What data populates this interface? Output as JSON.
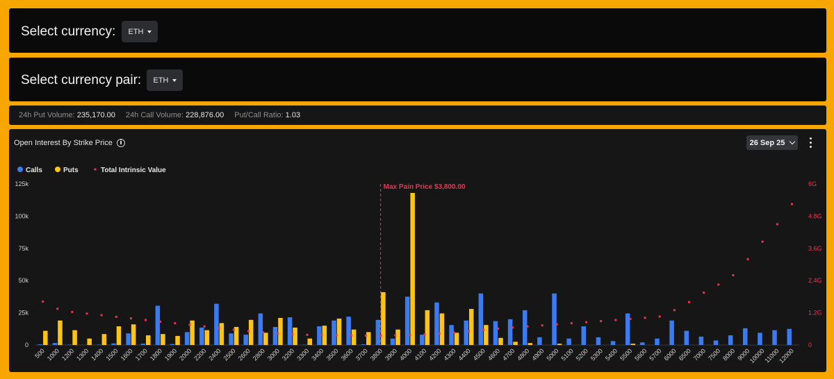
{
  "currency_select": {
    "label": "Select currency:",
    "value": "ETH"
  },
  "pair_select": {
    "label": "Select currency pair:",
    "value": "ETH"
  },
  "stats": {
    "put_volume_label": "24h Put Volume:",
    "put_volume": "235,170.00",
    "call_volume_label": "24h Call Volume:",
    "call_volume": "228,876.00",
    "ratio_label": "Put/Call Ratio:",
    "ratio": "1.03"
  },
  "chart_panel": {
    "title": "Open Interest By Strike Price",
    "expiry": "26 Sep 25"
  },
  "colors": {
    "calls": "#3a7bf2",
    "puts": "#fcc419",
    "intrinsic": "#e8364f",
    "page_border": "#f7a600"
  },
  "chart_data": {
    "type": "bar",
    "legend": [
      "Calls",
      "Puts",
      "Total Intrinsic Value"
    ],
    "legend_position": "top-left",
    "grid": false,
    "categories": [
      "500",
      "1000",
      "1200",
      "1300",
      "1400",
      "1500",
      "1600",
      "1700",
      "1800",
      "1900",
      "2000",
      "2200",
      "2400",
      "2500",
      "2600",
      "2800",
      "3000",
      "3200",
      "3300",
      "3400",
      "3500",
      "3600",
      "3700",
      "3800",
      "3900",
      "4000",
      "4100",
      "4200",
      "4300",
      "4400",
      "4500",
      "4600",
      "4700",
      "4800",
      "4900",
      "5000",
      "5100",
      "5200",
      "5300",
      "5400",
      "5500",
      "5600",
      "5700",
      "6000",
      "6500",
      "7000",
      "7500",
      "8000",
      "9000",
      "10000",
      "11000",
      "12000"
    ],
    "series": [
      {
        "name": "Calls",
        "axis": "left",
        "values": [
          500,
          1500,
          300,
          0,
          200,
          1200,
          9000,
          1000,
          30500,
          700,
          10000,
          13500,
          32000,
          9000,
          8000,
          24500,
          14000,
          21500,
          200,
          14500,
          19000,
          22000,
          500,
          19500,
          5000,
          37500,
          8000,
          33000,
          15500,
          19000,
          40000,
          18500,
          20000,
          27000,
          6000,
          40000,
          5000,
          14500,
          6000,
          3000,
          24500,
          2000,
          5000,
          19000,
          11000,
          6500,
          3500,
          7500,
          13000,
          9500,
          11500,
          12500
        ]
      },
      {
        "name": "Puts",
        "axis": "left",
        "values": [
          11000,
          19000,
          11500,
          5000,
          8500,
          14500,
          16000,
          7500,
          8500,
          7000,
          19000,
          11500,
          17000,
          14000,
          19500,
          9500,
          21000,
          13500,
          5000,
          15000,
          20500,
          12000,
          10000,
          41000,
          12000,
          118000,
          27000,
          24500,
          9500,
          28000,
          15500,
          5500,
          2500,
          1500,
          0,
          1000,
          0,
          0,
          0,
          0,
          1000,
          0,
          0,
          0,
          0,
          0,
          0,
          0,
          0,
          0,
          0,
          0
        ]
      },
      {
        "name": "Total Intrinsic Value",
        "axis": "right",
        "values": [
          1620000000.0,
          1350000000.0,
          1230000000.0,
          1170000000.0,
          1110000000.0,
          1050000000.0,
          990000000.0,
          930000000.0,
          870000000.0,
          810000000.0,
          750000000.0,
          690000000.0,
          630000000.0,
          570000000.0,
          520000000.0,
          470000000.0,
          430000000.0,
          400000000.0,
          380000000.0,
          370000000.0,
          360000000.0,
          360000000.0,
          350000000.0,
          350000000.0,
          360000000.0,
          370000000.0,
          390000000.0,
          420000000.0,
          460000000.0,
          510000000.0,
          570000000.0,
          610000000.0,
          650000000.0,
          690000000.0,
          730000000.0,
          770000000.0,
          810000000.0,
          850000000.0,
          890000000.0,
          930000000.0,
          970000000.0,
          1010000000.0,
          1060000000.0,
          1300000000.0,
          1600000000.0,
          1950000000.0,
          2250000000.0,
          2600000000.0,
          3200000000.0,
          3850000000.0,
          4500000000.0,
          5250000000.0
        ]
      }
    ],
    "y_left": {
      "ylim": [
        0,
        125000
      ],
      "ticks": [
        0,
        25000,
        50000,
        75000,
        100000,
        125000
      ],
      "tick_labels": [
        "0",
        "25k",
        "50k",
        "75k",
        "100k",
        "125k"
      ]
    },
    "y_right": {
      "ylim": [
        0,
        6000000000
      ],
      "ticks": [
        0,
        1200000000,
        2400000000,
        3600000000,
        4800000000,
        6000000000
      ],
      "tick_labels": [
        "0",
        "1.2G",
        "2.4G",
        "3.6G",
        "4.8G",
        "6G"
      ]
    },
    "annotation": {
      "label": "Max Pain Price $3,800.00",
      "category": "3800"
    }
  }
}
